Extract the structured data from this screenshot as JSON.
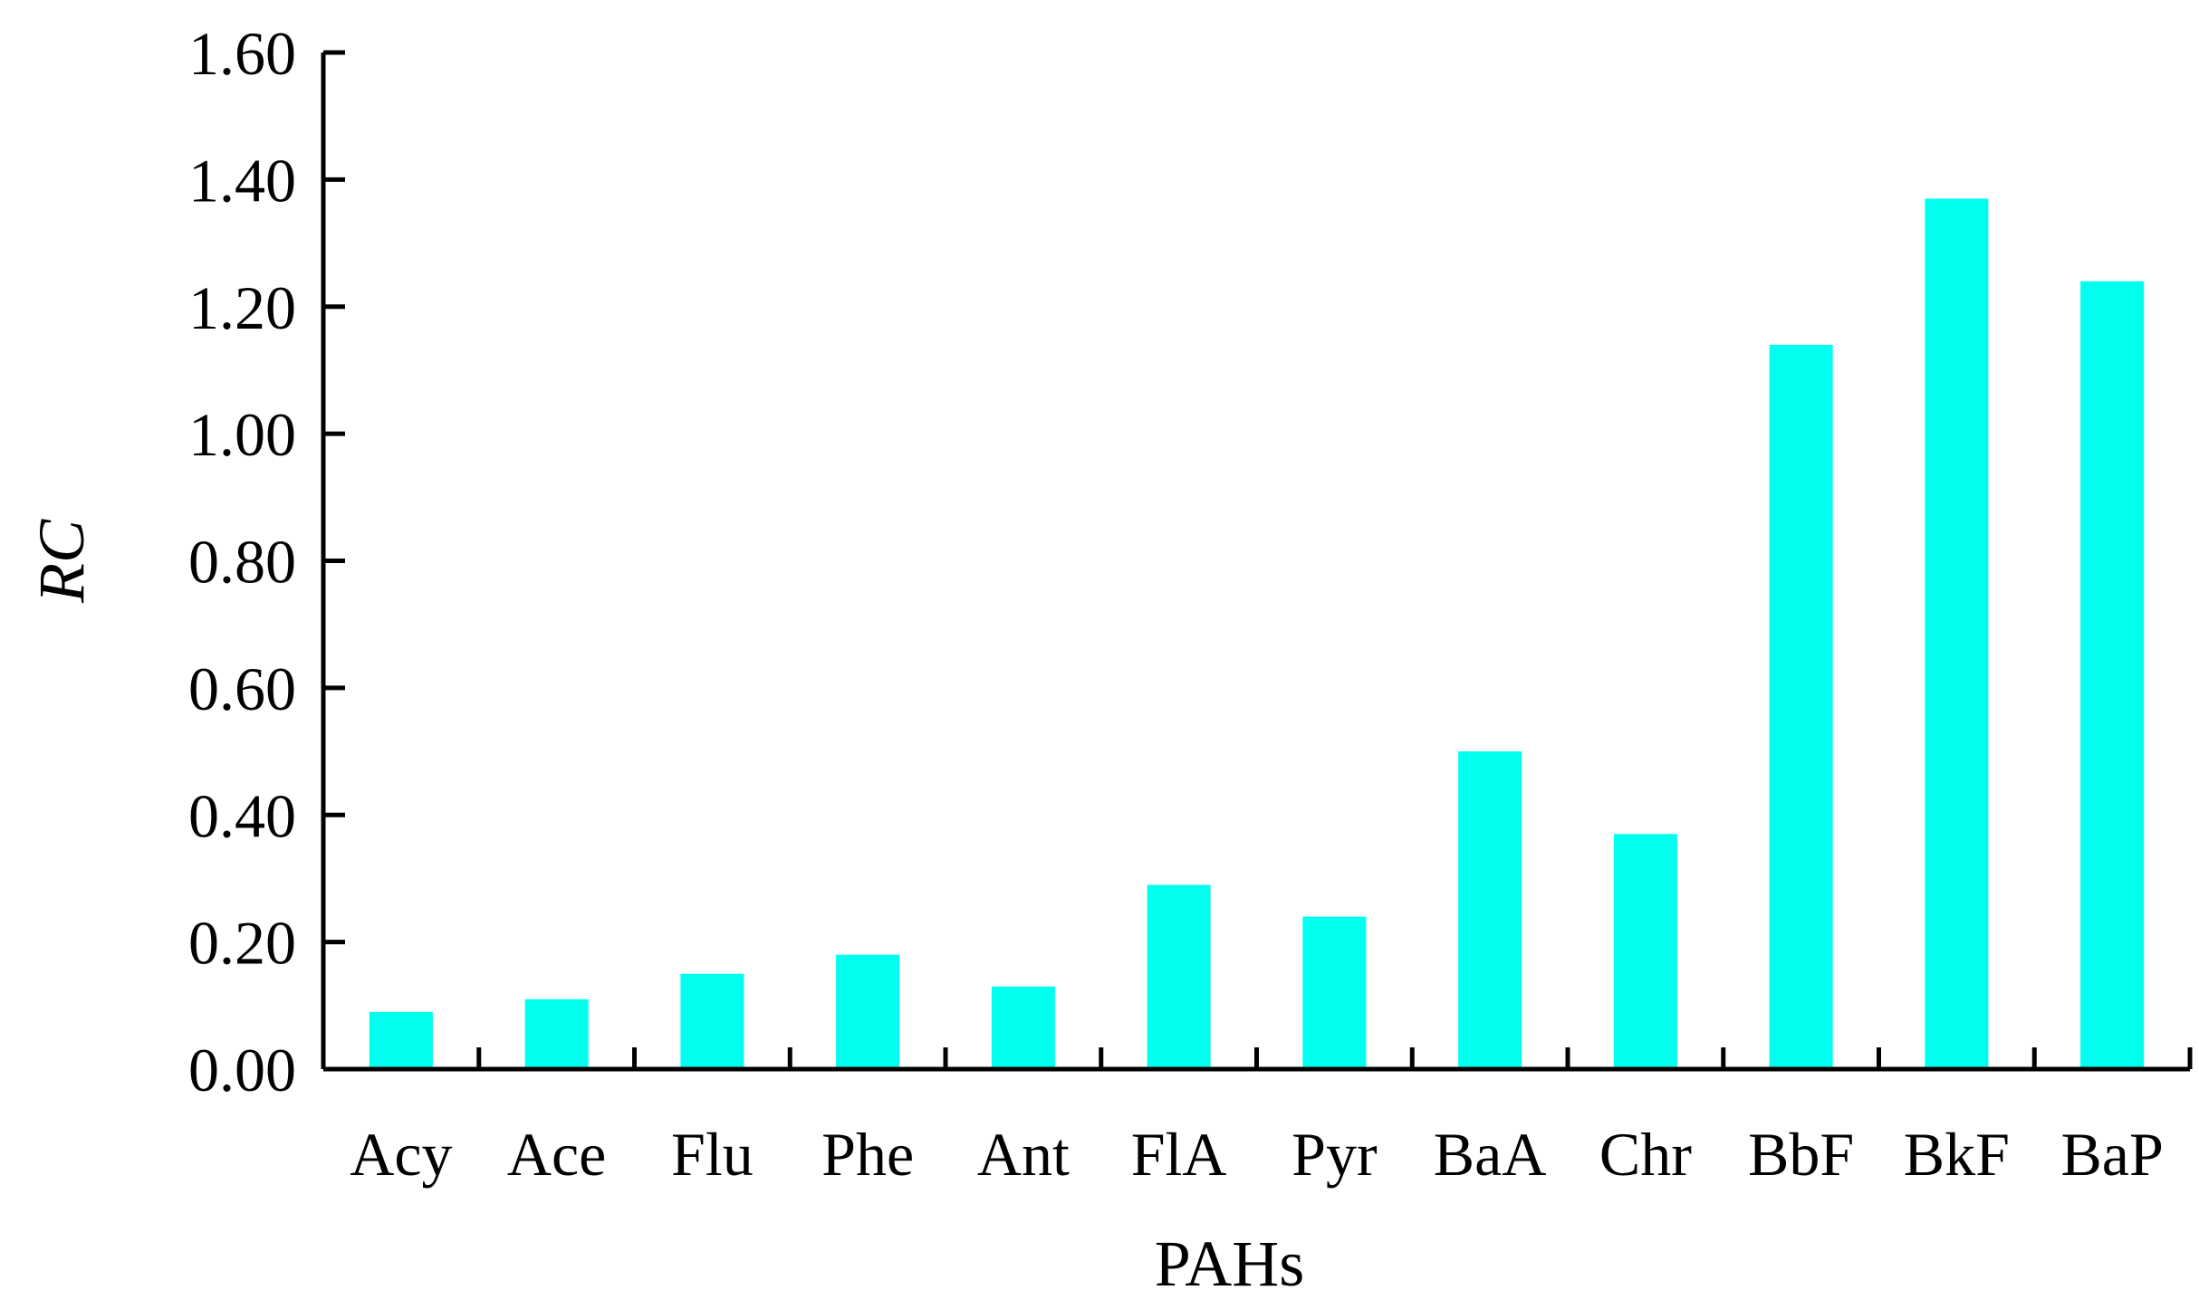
{
  "chart_data": {
    "type": "bar",
    "xlabel": "PAHs",
    "ylabel": "RC",
    "ylim": [
      0,
      1.6
    ],
    "yticks": [
      "0.00",
      "0.20",
      "0.40",
      "0.60",
      "0.80",
      "1.00",
      "1.20",
      "1.40",
      "1.60"
    ],
    "categories": [
      "Acy",
      "Ace",
      "Flu",
      "Phe",
      "Ant",
      "FlA",
      "Pyr",
      "BaA",
      "Chr",
      "BbF",
      "BkF",
      "BaP"
    ],
    "values": [
      0.09,
      0.11,
      0.15,
      0.18,
      0.13,
      0.29,
      0.24,
      0.5,
      0.37,
      1.14,
      1.37,
      1.24
    ],
    "bar_color": "#00ffee",
    "grid": false,
    "legend": "none"
  }
}
